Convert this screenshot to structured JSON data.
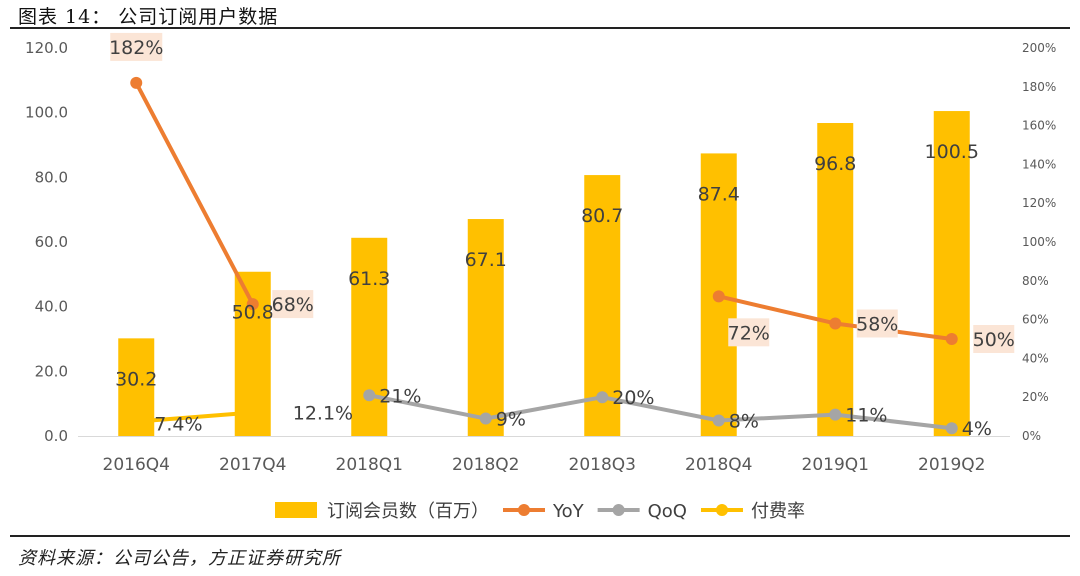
{
  "figure": {
    "title": "图表 14：  公司订阅用户数据",
    "source": "资料来源：公司公告，方正证券研究所"
  },
  "chart_data": {
    "type": "bar",
    "categories": [
      "2016Q4",
      "2017Q4",
      "2018Q1",
      "2018Q2",
      "2018Q3",
      "2018Q4",
      "2019Q1",
      "2019Q2"
    ],
    "series": [
      {
        "name": "订阅会员数（百万）",
        "type": "bar",
        "axis": "left",
        "color": "#FFC000",
        "values": [
          30.2,
          50.8,
          61.3,
          67.1,
          80.7,
          87.4,
          96.8,
          100.5
        ],
        "labels": [
          "30.2",
          "50.8",
          "61.3",
          "67.1",
          "80.7",
          "87.4",
          "96.8",
          "100.5"
        ]
      },
      {
        "name": "YoY",
        "type": "line",
        "axis": "right",
        "color": "#ED7D31",
        "segments": [
          [
            0,
            1
          ],
          [
            5,
            6,
            7
          ]
        ],
        "values": [
          1.82,
          0.68,
          null,
          null,
          null,
          0.72,
          0.58,
          0.5
        ],
        "labels": [
          "182%",
          "68%",
          "",
          "",
          "",
          "72%",
          "58%",
          "50%"
        ]
      },
      {
        "name": "QoQ",
        "type": "line",
        "axis": "right",
        "color": "#A5A5A5",
        "values": [
          null,
          null,
          0.21,
          0.09,
          0.2,
          0.08,
          0.11,
          0.04
        ],
        "labels": [
          "",
          "",
          "21%",
          "9%",
          "20%",
          "8%",
          "11%",
          "4%"
        ]
      },
      {
        "name": "付费率",
        "type": "line",
        "axis": "right",
        "color": "#FFC000",
        "values": [
          0.074,
          0.121,
          null,
          null,
          null,
          null,
          null,
          null
        ],
        "labels": [
          "7.4%",
          "12.1%",
          "",
          "",
          "",
          "",
          "",
          ""
        ]
      }
    ],
    "y_left": {
      "min": 0,
      "max": 120,
      "step": 20,
      "ticks": [
        "0.0",
        "20.0",
        "40.0",
        "60.0",
        "80.0",
        "100.0",
        "120.0"
      ]
    },
    "y_right": {
      "min": 0,
      "max": 2.0,
      "step": 0.2,
      "ticks": [
        "0%",
        "20%",
        "40%",
        "60%",
        "80%",
        "100%",
        "120%",
        "140%",
        "160%",
        "180%",
        "200%"
      ]
    },
    "grid": false,
    "legend_position": "bottom"
  }
}
